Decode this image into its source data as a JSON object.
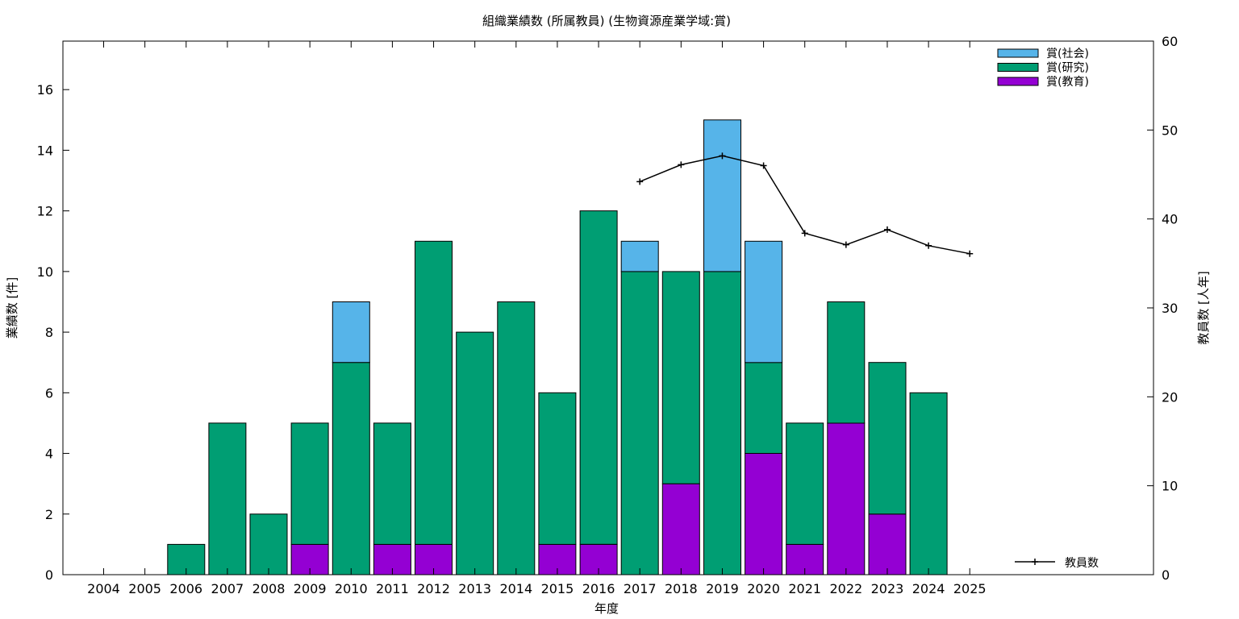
{
  "chart_data": {
    "type": "bar",
    "stacked": true,
    "title": "組織業績数 (所属教員) (生物資源産業学域:賞)",
    "xlabel": "年度",
    "ylabel": "業績数 [件]",
    "y2label": "教員数 [人年]",
    "categories": [
      "2004",
      "2005",
      "2006",
      "2007",
      "2008",
      "2009",
      "2010",
      "2011",
      "2012",
      "2013",
      "2014",
      "2015",
      "2016",
      "2017",
      "2018",
      "2019",
      "2020",
      "2021",
      "2022",
      "2023",
      "2024",
      "2025"
    ],
    "ylim": [
      0,
      17.6
    ],
    "yticks": [
      0,
      2,
      4,
      6,
      8,
      10,
      12,
      14,
      16
    ],
    "y2lim": [
      0,
      60
    ],
    "y2ticks": [
      0,
      10,
      20,
      30,
      40,
      50,
      60
    ],
    "series": [
      {
        "name": "賞(教育)",
        "color": "#9400d3",
        "values": [
          0,
          0,
          0,
          0,
          0,
          1,
          0,
          1,
          1,
          0,
          0,
          1,
          1,
          0,
          3,
          0,
          4,
          1,
          5,
          2,
          0,
          0
        ]
      },
      {
        "name": "賞(研究)",
        "color": "#009e73",
        "values": [
          0,
          0,
          1,
          5,
          2,
          4,
          7,
          4,
          10,
          8,
          9,
          5,
          11,
          10,
          7,
          10,
          3,
          4,
          4,
          5,
          6,
          0
        ]
      },
      {
        "name": "賞(社会)",
        "color": "#56b4e9",
        "values": [
          0,
          0,
          0,
          0,
          0,
          0,
          2,
          0,
          0,
          0,
          0,
          0,
          0,
          1,
          0,
          5,
          4,
          0,
          0,
          0,
          0,
          0
        ]
      }
    ],
    "legend_order": [
      "賞(社会)",
      "賞(研究)",
      "賞(教育)"
    ],
    "line_series": {
      "name": "教員数",
      "axis": "y2",
      "color": "#000000",
      "x": [
        "2017",
        "2018",
        "2019",
        "2020",
        "2021",
        "2022",
        "2023",
        "2024",
        "2025"
      ],
      "values": [
        44.2,
        46.1,
        47.1,
        46.0,
        38.4,
        37.1,
        38.8,
        37.0,
        36.1
      ]
    },
    "legend_position": "top-right",
    "grid": false
  }
}
